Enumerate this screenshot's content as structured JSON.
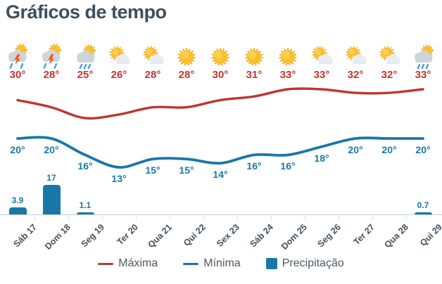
{
  "page": {
    "title": "Gráficos de tempo"
  },
  "colors": {
    "title": "#3c4f5e",
    "max_line": "#c03531",
    "min_line": "#1878a8",
    "precip_bar": "#1878a8",
    "legend_max": "#b23c3c",
    "legend_min": "#1878a8",
    "legend_precip": "#1878a8"
  },
  "legend": {
    "items": [
      {
        "label": "Máxima",
        "swatch": "line",
        "color": "#b23c3c"
      },
      {
        "label": "Mínima",
        "swatch": "line",
        "color": "#1878a8"
      },
      {
        "label": "Precipitação",
        "swatch": "square",
        "color": "#1878a8"
      }
    ]
  },
  "chart_data": {
    "type": "line+bar",
    "title": "Gráficos de tempo",
    "categories": [
      "Sáb 17",
      "Dom 18",
      "Seg 19",
      "Ter 20",
      "Qua 21",
      "Qui 22",
      "Sex 23",
      "Sáb 24",
      "Dom 25",
      "Seg 26",
      "Ter 27",
      "Qua 28",
      "Qui 29"
    ],
    "icons": [
      "storm",
      "storm",
      "sun-rain",
      "sun-cloud",
      "sun-cloud",
      "sun",
      "sun",
      "sun",
      "sun",
      "sun-cloud",
      "sun-cloud",
      "sun-cloud",
      "sun-rain"
    ],
    "series": [
      {
        "name": "Máxima",
        "type": "line",
        "unit": "°",
        "color": "#c03531",
        "values": [
          30,
          28,
          25,
          26,
          28,
          28,
          30,
          31,
          33,
          33,
          32,
          32,
          33
        ]
      },
      {
        "name": "Mínima",
        "type": "line",
        "unit": "°",
        "color": "#1878a8",
        "values": [
          20,
          20,
          16,
          13,
          15,
          15,
          14,
          16,
          16,
          18,
          20,
          20,
          20
        ]
      },
      {
        "name": "Precipitação",
        "type": "bar",
        "color": "#1878a8",
        "values": [
          3.9,
          17,
          1.1,
          0,
          0,
          0,
          0,
          0,
          0,
          0,
          0,
          0,
          0.7
        ]
      }
    ],
    "legend_position": "bottom",
    "grid": false,
    "x_labels_rotation": -45
  }
}
